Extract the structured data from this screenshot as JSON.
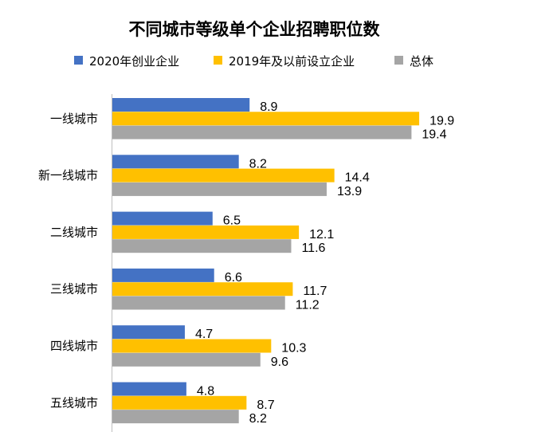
{
  "chart_data": {
    "type": "bar",
    "orientation": "horizontal",
    "title": "不同城市等级单个企业招聘职位数",
    "categories": [
      "一线城市",
      "新一线城市",
      "二线城市",
      "三线城市",
      "四线城市",
      "五线城市"
    ],
    "series": [
      {
        "name": "2020年创业企业",
        "color": "#4472C4",
        "values": [
          8.9,
          8.2,
          6.5,
          6.6,
          4.7,
          4.8
        ]
      },
      {
        "name": "2019年及以前设立企业",
        "color": "#FFC000",
        "values": [
          19.9,
          14.4,
          12.1,
          11.7,
          10.3,
          8.7
        ]
      },
      {
        "name": "总体",
        "color": "#A5A5A5",
        "values": [
          19.4,
          13.9,
          11.6,
          11.2,
          9.6,
          8.2
        ]
      }
    ],
    "xlim": [
      0,
      20
    ],
    "grid": false,
    "legend": "top",
    "data_labels": true,
    "xlabel": "",
    "ylabel": ""
  }
}
